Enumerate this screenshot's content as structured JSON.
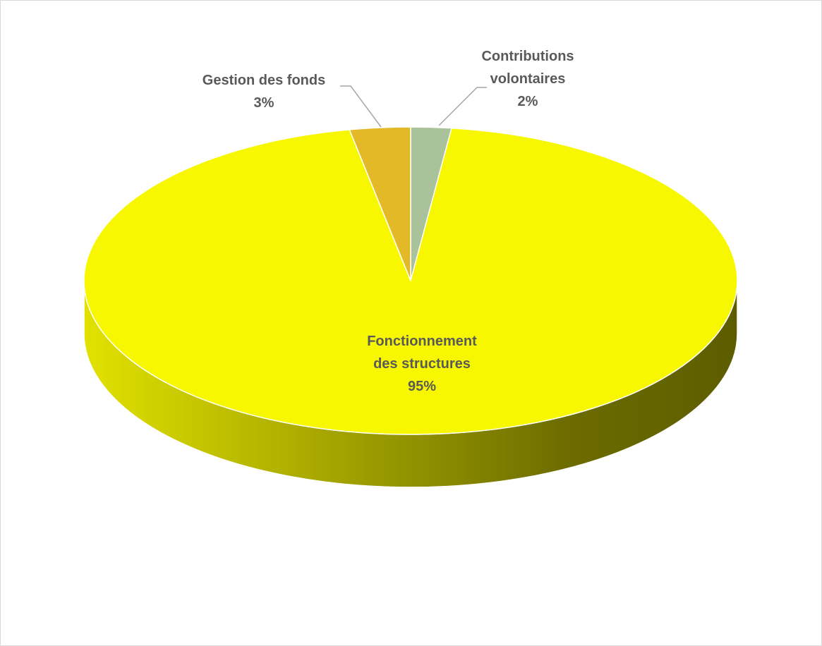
{
  "chart_data": {
    "type": "pie",
    "style": "3d",
    "categories": [
      "Contributions volontaires",
      "Fonctionnement des structures",
      "Gestion des fonds"
    ],
    "values": [
      2,
      95,
      3
    ],
    "unit": "%",
    "colors": [
      "#a9c29a",
      "#f7f700",
      "#e3b928"
    ],
    "slice_border": "#ffffff",
    "leader_line_color": "#a6a6a6",
    "data_labels": [
      {
        "lines": [
          "Contributions",
          "volontaires"
        ],
        "value": "2%"
      },
      {
        "lines": [
          "Fonctionnement",
          "des structures"
        ],
        "value": "95%"
      },
      {
        "lines": [
          "Gestion des fonds"
        ],
        "value": "3%"
      }
    ]
  }
}
